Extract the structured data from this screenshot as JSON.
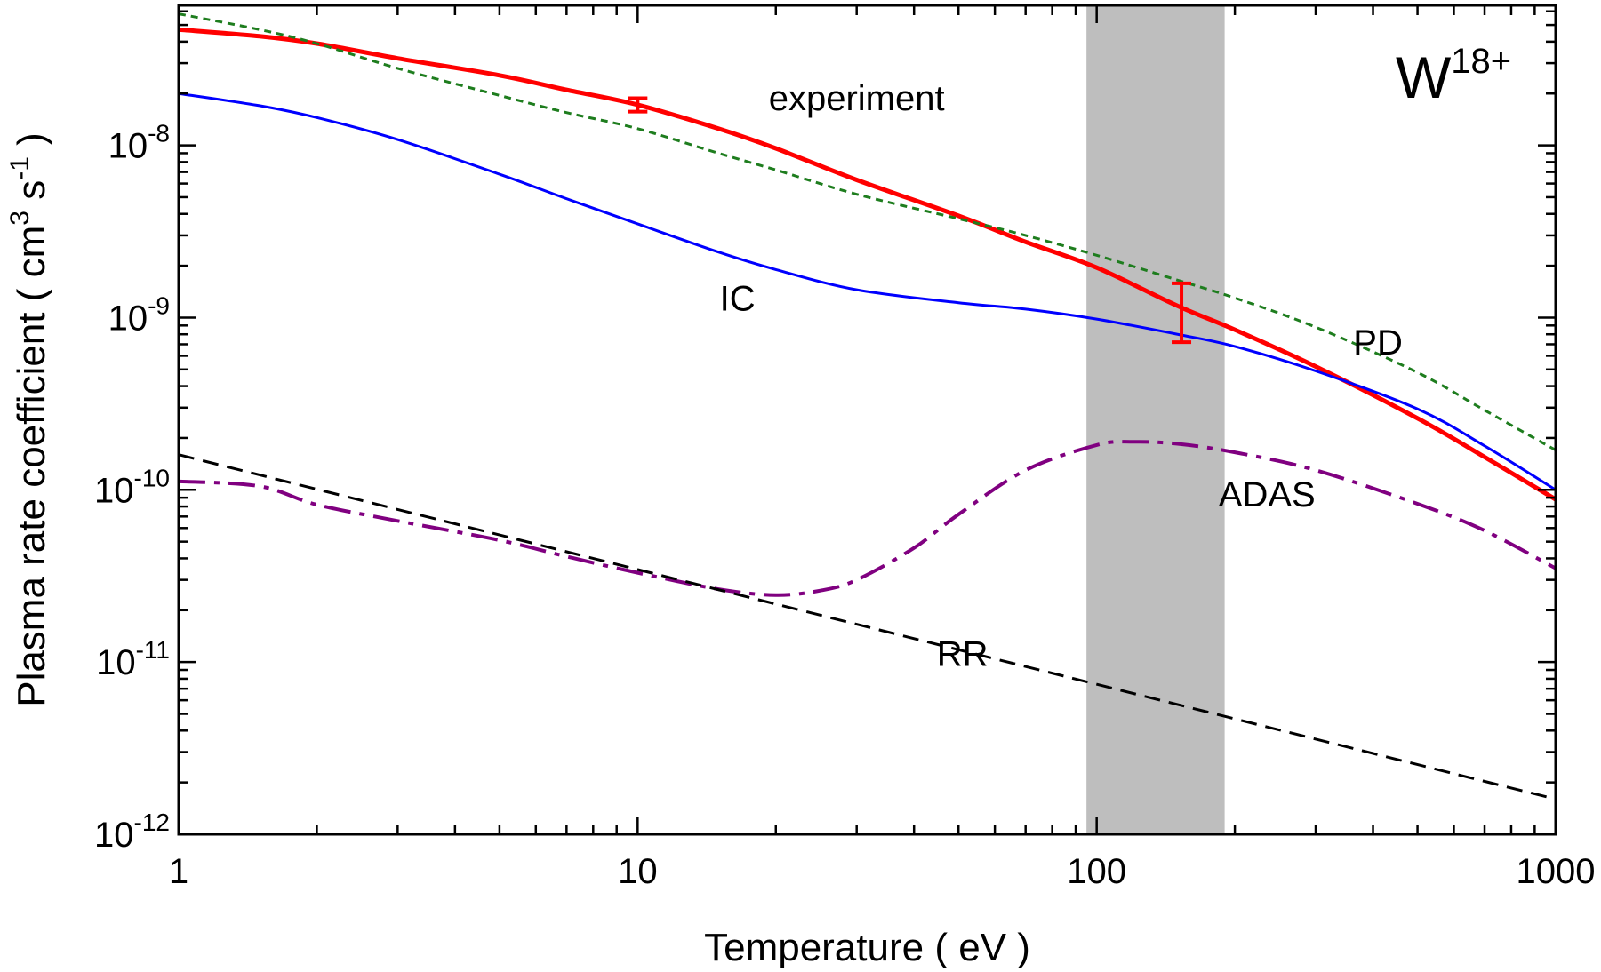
{
  "chart_data": {
    "type": "line",
    "xscale": "log",
    "yscale": "log",
    "xlim": [
      1,
      1000
    ],
    "ylim": [
      1e-12,
      6.5e-08
    ],
    "xlabel": "Temperature  ( eV )",
    "ylabel": "Plasma rate coefficient  ( cm3 s-1 )",
    "ylabel_parts": {
      "text": "Plasma rate coefficient  ( cm",
      "sup1": "3",
      "mid": " s",
      "sup2": "-1",
      "end": " )"
    },
    "ion_label": {
      "base": "W",
      "sup": "18+"
    },
    "x_ticks": [
      {
        "value": 1,
        "label": "1"
      },
      {
        "value": 10,
        "label": "10"
      },
      {
        "value": 100,
        "label": "100"
      },
      {
        "value": 1000,
        "label": "1000"
      }
    ],
    "y_ticks": [
      {
        "value": 1e-12,
        "base": "10",
        "exp": "-12"
      },
      {
        "value": 1e-11,
        "base": "10",
        "exp": "-11"
      },
      {
        "value": 1e-10,
        "base": "10",
        "exp": "-10"
      },
      {
        "value": 1e-09,
        "base": "10",
        "exp": "-9"
      },
      {
        "value": 1e-08,
        "base": "10",
        "exp": "-8"
      }
    ],
    "shaded_band": {
      "x_range": [
        95,
        190
      ],
      "color": "#bebebe"
    },
    "series": [
      {
        "name": "experiment",
        "label": "experiment",
        "color": "#ff0000",
        "style": "solid",
        "width": 5,
        "label_at": {
          "x": 30,
          "y": 1.6e-08
        },
        "x": [
          1,
          1.5,
          2,
          3,
          5,
          7,
          10,
          15,
          20,
          30,
          50,
          70,
          100,
          150,
          200,
          300,
          500,
          700,
          1000
        ],
        "y": [
          4.7e-08,
          4.3e-08,
          3.9e-08,
          3.2e-08,
          2.55e-08,
          2.1e-08,
          1.72e-08,
          1.25e-08,
          9.6e-09,
          6.3e-09,
          3.9e-09,
          2.75e-09,
          1.95e-09,
          1.17e-09,
          8.5e-10,
          5.2e-10,
          2.6e-10,
          1.55e-10,
          8.8e-11
        ],
        "error_bars": [
          {
            "x": 10,
            "y": 1.72e-08,
            "low": 1.57e-08,
            "high": 1.88e-08
          },
          {
            "x": 153,
            "y": 1.1e-09,
            "low": 7.2e-10,
            "high": 1.58e-09
          }
        ]
      },
      {
        "name": "PD",
        "label": "PD",
        "color": "#1e7d1e",
        "style": "dotted",
        "width": 3,
        "label_at": {
          "x": 410,
          "y": 6.1e-10
        },
        "x": [
          1,
          1.5,
          2,
          3,
          5,
          7,
          10,
          15,
          20,
          30,
          50,
          70,
          100,
          150,
          200,
          300,
          500,
          700,
          1000
        ],
        "y": [
          5.8e-08,
          4.7e-08,
          3.9e-08,
          2.8e-08,
          1.95e-08,
          1.55e-08,
          1.25e-08,
          9e-09,
          7.2e-09,
          5.2e-09,
          3.75e-09,
          3e-09,
          2.3e-09,
          1.65e-09,
          1.3e-09,
          8.8e-10,
          4.8e-10,
          2.9e-10,
          1.7e-10
        ]
      },
      {
        "name": "IC",
        "label": "IC",
        "color": "#0000ff",
        "style": "solid",
        "width": 3,
        "label_at": {
          "x": 16.5,
          "y": 1.1e-09
        },
        "x": [
          1,
          1.5,
          2,
          3,
          5,
          7,
          10,
          15,
          20,
          30,
          50,
          70,
          100,
          150,
          200,
          300,
          500,
          700,
          1000
        ],
        "y": [
          2e-08,
          1.7e-08,
          1.45e-08,
          1.08e-08,
          6.8e-09,
          4.9e-09,
          3.5e-09,
          2.4e-09,
          1.9e-09,
          1.45e-09,
          1.22e-09,
          1.12e-09,
          9.8e-10,
          8e-10,
          6.8e-10,
          4.9e-10,
          2.95e-10,
          1.8e-10,
          1e-10
        ]
      },
      {
        "name": "ADAS",
        "label": "ADAS",
        "color": "#800080",
        "style": "dashdot",
        "width": 4,
        "label_at": {
          "x": 235,
          "y": 8e-11
        },
        "x": [
          1,
          1.5,
          2,
          3,
          5,
          7,
          10,
          15,
          20,
          25,
          30,
          40,
          50,
          70,
          100,
          120,
          150,
          200,
          300,
          500,
          700,
          1000
        ],
        "y": [
          1.12e-10,
          1.05e-10,
          8.2e-11,
          6.6e-11,
          5.1e-11,
          4.1e-11,
          3.3e-11,
          2.65e-11,
          2.45e-11,
          2.6e-11,
          3e-11,
          4.6e-11,
          7.2e-11,
          1.3e-10,
          1.82e-10,
          1.9e-10,
          1.85e-10,
          1.65e-10,
          1.3e-10,
          8.3e-11,
          5.8e-11,
          3.5e-11
        ]
      },
      {
        "name": "RR",
        "label": "RR",
        "color": "#000000",
        "style": "dashed",
        "width": 3,
        "label_at": {
          "x": 51,
          "y": 9.5e-12
        },
        "x": [
          1,
          1000
        ],
        "y": [
          1.6e-10,
          1.6e-12
        ]
      }
    ]
  }
}
